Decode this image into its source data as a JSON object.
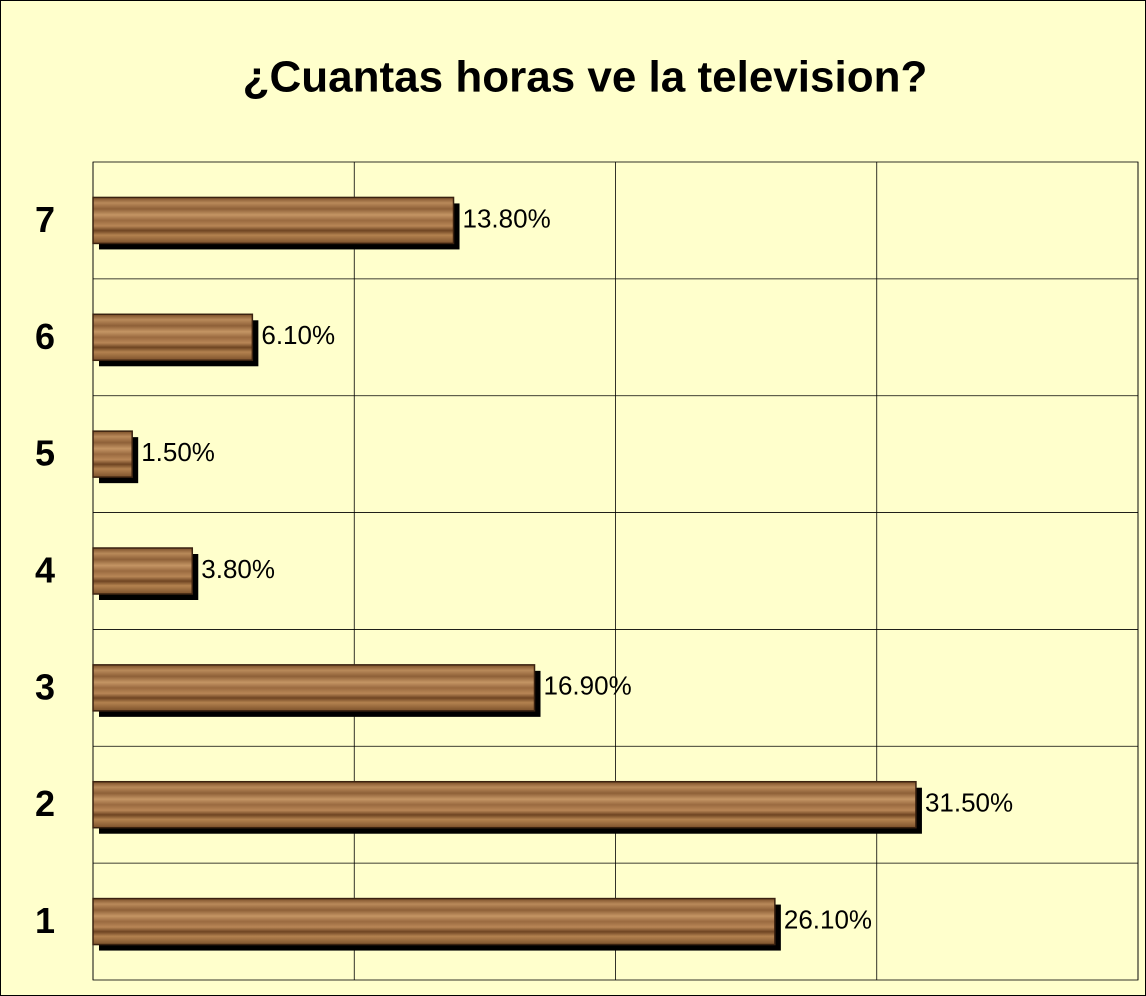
{
  "chart_data": {
    "type": "bar",
    "orientation": "horizontal",
    "title": "¿Cuantas horas ve la television?",
    "categories": [
      "1",
      "2",
      "3",
      "4",
      "5",
      "6",
      "7"
    ],
    "values": [
      26.1,
      31.5,
      16.9,
      3.8,
      1.5,
      6.1,
      13.8
    ],
    "value_labels": [
      "26.10%",
      "31.50%",
      "16.90%",
      "3.80%",
      "1.50%",
      "6.10%",
      "13.80%"
    ],
    "color": "#8b5a2b",
    "xlim": [
      0,
      40
    ],
    "xticks": [
      0,
      10,
      20,
      30,
      40
    ],
    "grid": true
  }
}
